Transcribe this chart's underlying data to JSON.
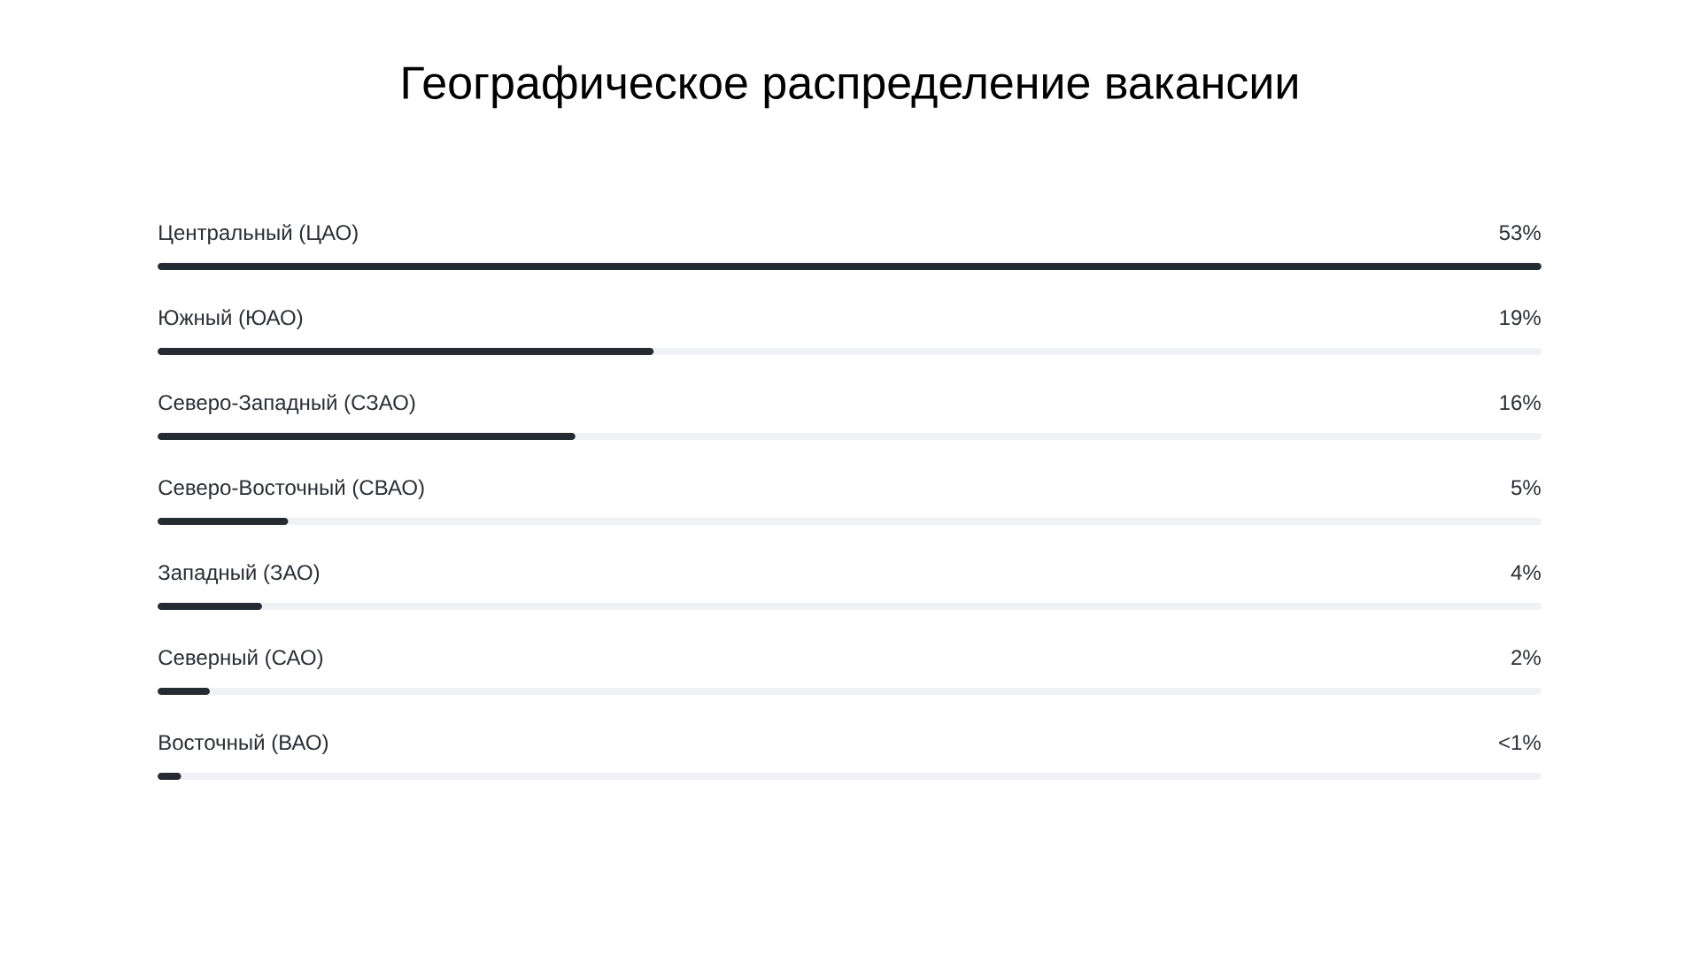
{
  "chart_data": {
    "type": "bar",
    "orientation": "horizontal",
    "title": "Географическое распределение вакансии",
    "categories": [
      "Центральный (ЦАО)",
      "Южный (ЮАО)",
      "Северо-Западный (СЗАО)",
      "Северо-Восточный (СВАО)",
      "Западный (ЗАО)",
      "Северный (САО)",
      "Восточный (ВАО)"
    ],
    "values": [
      53,
      19,
      16,
      5,
      4,
      2,
      0.9
    ],
    "value_labels": [
      "53%",
      "19%",
      "16%",
      "5%",
      "4%",
      "2%",
      "<1%"
    ],
    "color": "#262b33",
    "xlim": [
      0,
      53
    ]
  }
}
